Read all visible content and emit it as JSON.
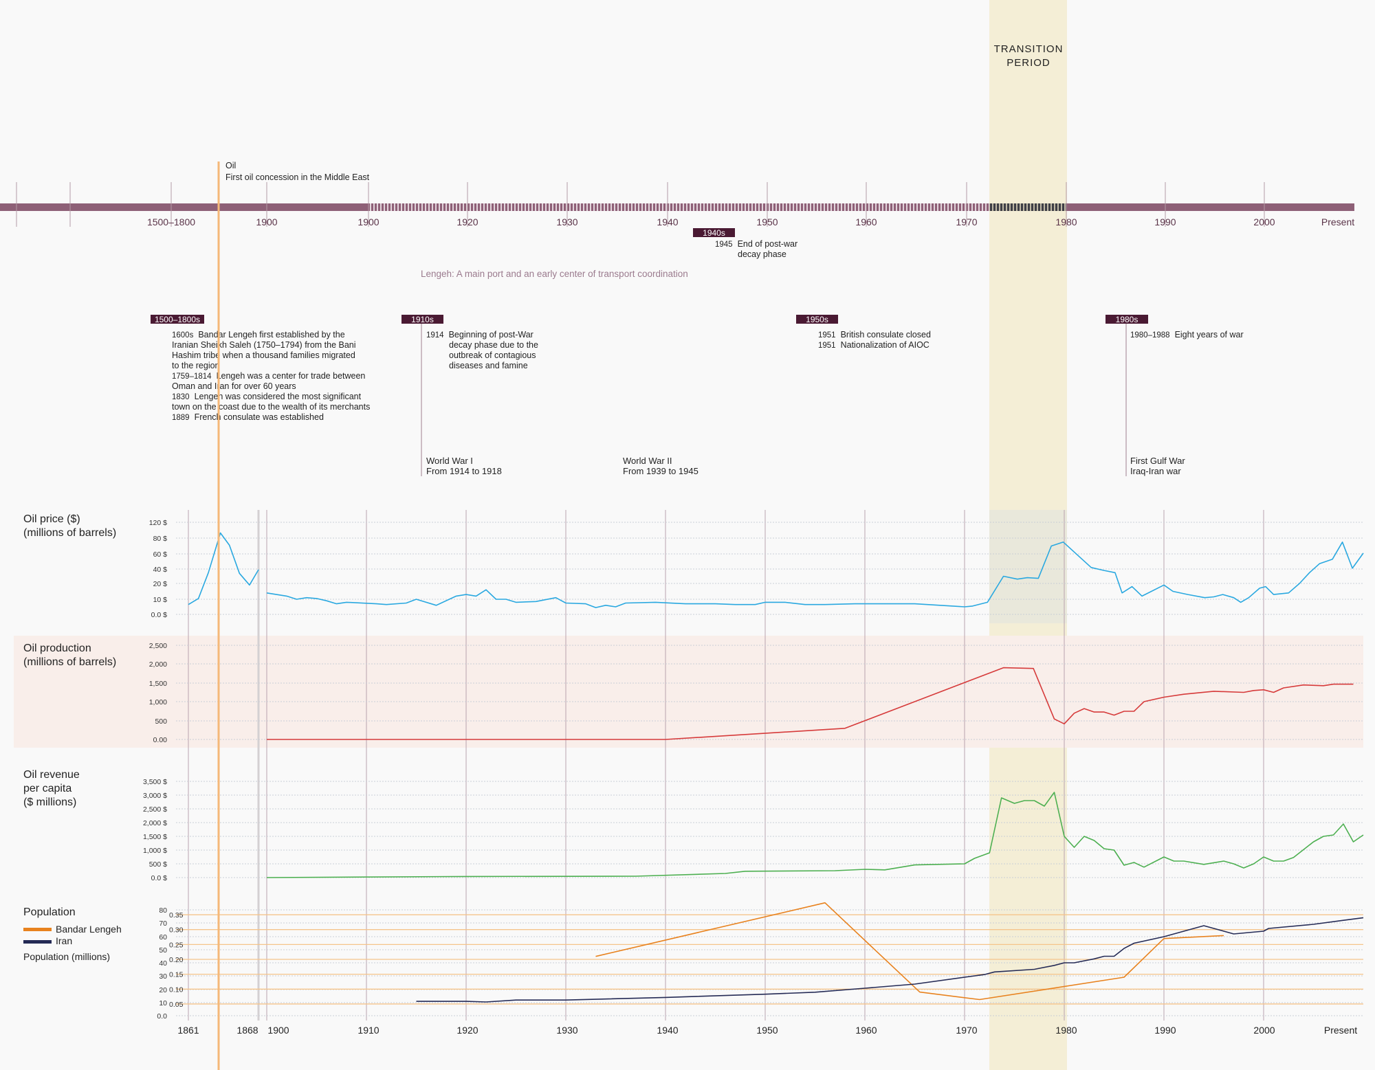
{
  "header": {
    "transition_line1": "TRANSITION",
    "transition_line2": "PERIOD"
  },
  "timeline": {
    "labels": [
      "1500–1800",
      "1900",
      "1900",
      "1920",
      "1930",
      "1940",
      "1950",
      "1960",
      "1970",
      "1980",
      "1990",
      "2000",
      "Present"
    ],
    "oil_marker": {
      "title": "Oil",
      "text": "First oil concession in the Middle East"
    },
    "theme": "Lengeh: A main port and an early center of transport coordination"
  },
  "eras": [
    {
      "tag": "1500–1800s",
      "entries": [
        {
          "year": "1600s",
          "lines": [
            "Bandar Lengeh first established by the",
            "Iranian Sheikh Saleh (1750–1794) from the Bani",
            "Hashim tribe when a thousand families migrated",
            "to the region"
          ]
        },
        {
          "year": "1759–1814",
          "lines": [
            "Lengeh was a center for trade between",
            "Oman and Iran for over 60 years"
          ]
        },
        {
          "year": "1830",
          "lines": [
            "Lengeh was considered the most significant",
            "town on the coast due to the wealth of its merchants"
          ]
        },
        {
          "year": "1889",
          "lines": [
            "French consulate was established"
          ]
        }
      ]
    },
    {
      "tag": "1910s",
      "entries": [
        {
          "year": "1914",
          "lines": [
            "Beginning of post-War",
            "decay phase due to the",
            "outbreak of contagious",
            "diseases and famine"
          ]
        }
      ]
    },
    {
      "tag": "1940s",
      "entries": [
        {
          "year": "1945",
          "lines": [
            "End of post-war",
            "decay phase"
          ]
        }
      ]
    },
    {
      "tag": "1950s",
      "entries": [
        {
          "year": "1951",
          "lines": [
            "British consulate closed"
          ]
        },
        {
          "year": "1951",
          "lines": [
            "Nationalization of AIOC"
          ]
        }
      ]
    },
    {
      "tag": "1980s",
      "entries": [
        {
          "year": "1980–1988",
          "lines": [
            "Eight years of war"
          ]
        }
      ]
    }
  ],
  "wars": [
    {
      "title": "World War I",
      "sub": "From 1914 to 1918"
    },
    {
      "title": "World War II",
      "sub": "From 1939 to 1945"
    },
    {
      "title": "First Gulf War",
      "sub": "Iraq-Iran war"
    }
  ],
  "x_axis_labels": [
    "1861",
    "1868",
    "1900",
    "1910",
    "1920",
    "1930",
    "1940",
    "1950",
    "1960",
    "1970",
    "1980",
    "1990",
    "2000",
    "Present"
  ],
  "colors": {
    "timeline_bar": "#8e6077",
    "era_tag": "#4a1a33",
    "transition": "#f4eed6",
    "oil_marker": "#f5b878",
    "production_bg": "#f9eeea"
  },
  "chart_data": [
    {
      "type": "line",
      "key": "price",
      "title": [
        "Oil price ($)",
        "(millions of barrels)"
      ],
      "yticks": [
        0,
        10,
        20,
        40,
        60,
        80,
        120
      ],
      "ytick_labels": [
        "0.0 $",
        "10 $",
        "20 $",
        "40 $",
        "60 $",
        "80 $",
        "120 $"
      ],
      "color": "#29a8e0",
      "series": [
        {
          "name": "Oil price 1861–1868",
          "x": [
            1861,
            1862,
            1863,
            1864.2,
            1865.1,
            1866.1,
            1867.1,
            1868
          ],
          "y": [
            6.5,
            10.5,
            35,
            93,
            71,
            34,
            19,
            39
          ]
        },
        {
          "name": "Oil price 1900–present",
          "x": [
            1900,
            1902,
            1903,
            1904,
            1905,
            1906,
            1907,
            1908,
            1911,
            1912,
            1914,
            1915,
            1917,
            1919,
            1920,
            1921,
            1922,
            1923,
            1924,
            1925,
            1927,
            1929,
            1930,
            1932,
            1933,
            1934,
            1935,
            1936,
            1939,
            1942,
            1945,
            1947,
            1949,
            1950,
            1952,
            1954,
            1956,
            1959,
            1965,
            1970,
            1970.8,
            1972.3,
            1973.9,
            1975.3,
            1976.3,
            1977.4,
            1978.7,
            1979.9,
            1982.7,
            1984,
            1985.1,
            1985.8,
            1986.8,
            1987.8,
            1990,
            1990.9,
            1992.4,
            1994.1,
            1995,
            1995.9,
            1997,
            1997.7,
            1998.5,
            1999.6,
            2000.2,
            2001,
            2002.5,
            2003.6,
            2004.6,
            2005.6,
            2006.9,
            2007.9,
            2008.9,
            2010
          ],
          "y": [
            14,
            12,
            10,
            11,
            10.5,
            9,
            7,
            8,
            7,
            6.5,
            7.5,
            10,
            6,
            12,
            13,
            12,
            16,
            10,
            10,
            8,
            8.5,
            11,
            7.5,
            7,
            4.5,
            6,
            5,
            7.5,
            8,
            7,
            7,
            6.5,
            6.5,
            8,
            8,
            6.5,
            6.5,
            7,
            7,
            5,
            5.5,
            8,
            30,
            26,
            28,
            27,
            70,
            75,
            42,
            38,
            35,
            14,
            18,
            12,
            19,
            15,
            13,
            11,
            11.5,
            13,
            11,
            8,
            11,
            17,
            18,
            13,
            14,
            20,
            35,
            47,
            53,
            75,
            41,
            61
          ]
        }
      ]
    },
    {
      "type": "line",
      "key": "production",
      "title": [
        "Oil production",
        "(millions of barrels)"
      ],
      "yticks": [
        0,
        500,
        1000,
        1500,
        2000,
        2500
      ],
      "ytick_labels": [
        "0.00",
        "500",
        "1,000",
        "1,500",
        "2,000",
        "2,500"
      ],
      "color": "#d63a3a",
      "series": [
        {
          "name": "Oil production",
          "x": [
            1900,
            1940,
            1958,
            1973.9,
            1976.9,
            1979,
            1980,
            1981,
            1982,
            1983,
            1984,
            1985,
            1986,
            1987,
            1988,
            1990,
            1992,
            1995,
            1998,
            1999,
            2000,
            2001,
            2002,
            2004,
            2006,
            2007,
            2009
          ],
          "y": [
            0,
            0,
            300,
            1900,
            1880,
            550,
            420,
            700,
            820,
            730,
            730,
            650,
            750,
            750,
            1000,
            1120,
            1200,
            1280,
            1250,
            1300,
            1320,
            1250,
            1370,
            1450,
            1430,
            1470,
            1470
          ]
        }
      ]
    },
    {
      "type": "line",
      "key": "revenue",
      "title": [
        "Oil revenue",
        "per capita",
        "($ millions)"
      ],
      "yticks": [
        0,
        500,
        1000,
        1500,
        2000,
        2500,
        3000,
        3500
      ],
      "ytick_labels": [
        "0.0 $",
        "500 $",
        "1,000 $",
        "1,500 $",
        "2,000 $",
        "2,500 $",
        "3,000 $",
        "3,500 $"
      ],
      "color": "#4caf50",
      "series": [
        {
          "name": "Oil revenue per capita",
          "x": [
            1900,
            1920,
            1937,
            1946,
            1948,
            1957,
            1960,
            1962,
            1965,
            1970,
            1971,
            1972.5,
            1973.7,
            1975,
            1976,
            1977,
            1978,
            1979,
            1980,
            1981,
            1982,
            1983,
            1984,
            1985,
            1986,
            1987,
            1988,
            1990,
            1991,
            1992,
            1994,
            1996,
            1997,
            1998,
            1999,
            2000,
            2001,
            2002,
            2003,
            2005,
            2006,
            2007,
            2008,
            2009,
            2010
          ],
          "y": [
            0,
            40,
            50,
            150,
            230,
            250,
            300,
            280,
            460,
            500,
            700,
            900,
            2900,
            2700,
            2800,
            2800,
            2600,
            3100,
            1500,
            1100,
            1500,
            1350,
            1050,
            1000,
            450,
            550,
            380,
            750,
            600,
            600,
            480,
            600,
            500,
            350,
            500,
            750,
            600,
            600,
            730,
            1300,
            1500,
            1550,
            1950,
            1300,
            1550
          ]
        }
      ]
    },
    {
      "type": "line",
      "key": "population",
      "title": [
        "Population"
      ],
      "legend": [
        "Bandar Lengeh",
        "Iran"
      ],
      "ylabel": "Population (millions)",
      "yticks": [
        0,
        10,
        20,
        30,
        40,
        50,
        60,
        70,
        80
      ],
      "ytick_labels": [
        "0.0",
        "10",
        "20",
        "30",
        "40",
        "50",
        "60",
        "70",
        "80"
      ],
      "yticks_right": [
        0.05,
        0.1,
        0.15,
        0.2,
        0.25,
        0.3,
        0.35
      ],
      "ytick_labels_right": [
        "0.05",
        "0.10",
        "0.15",
        "0.20",
        "0.25",
        "0.30",
        "0.35"
      ],
      "series": [
        {
          "name": "Bandar Lengeh",
          "axis": "right",
          "color": "#e8821e",
          "x": [
            1933,
            1956,
            1965.5,
            1971.5,
            1986,
            1990,
            1996
          ],
          "y": [
            0.21,
            0.39,
            0.09,
            0.065,
            0.14,
            0.27,
            0.28
          ]
        },
        {
          "name": "Iran",
          "axis": "left",
          "color": "#242a55",
          "x": [
            1915,
            1920,
            1922,
            1925,
            1930,
            1940,
            1950,
            1955,
            1960,
            1965,
            1970,
            1972,
            1973,
            1977,
            1979,
            1980,
            1981,
            1983,
            1984,
            1985,
            1986,
            1987,
            1990,
            1992,
            1994,
            1997,
            2000,
            2000.5,
            2005,
            2008,
            2010
          ],
          "y": [
            11,
            11,
            10.5,
            12,
            12,
            14,
            16.5,
            18,
            21,
            24,
            29,
            31,
            33,
            35,
            38,
            40,
            40,
            43,
            45,
            45,
            51,
            55,
            60,
            64,
            68,
            62,
            64,
            66,
            69,
            72,
            74
          ]
        }
      ]
    }
  ]
}
